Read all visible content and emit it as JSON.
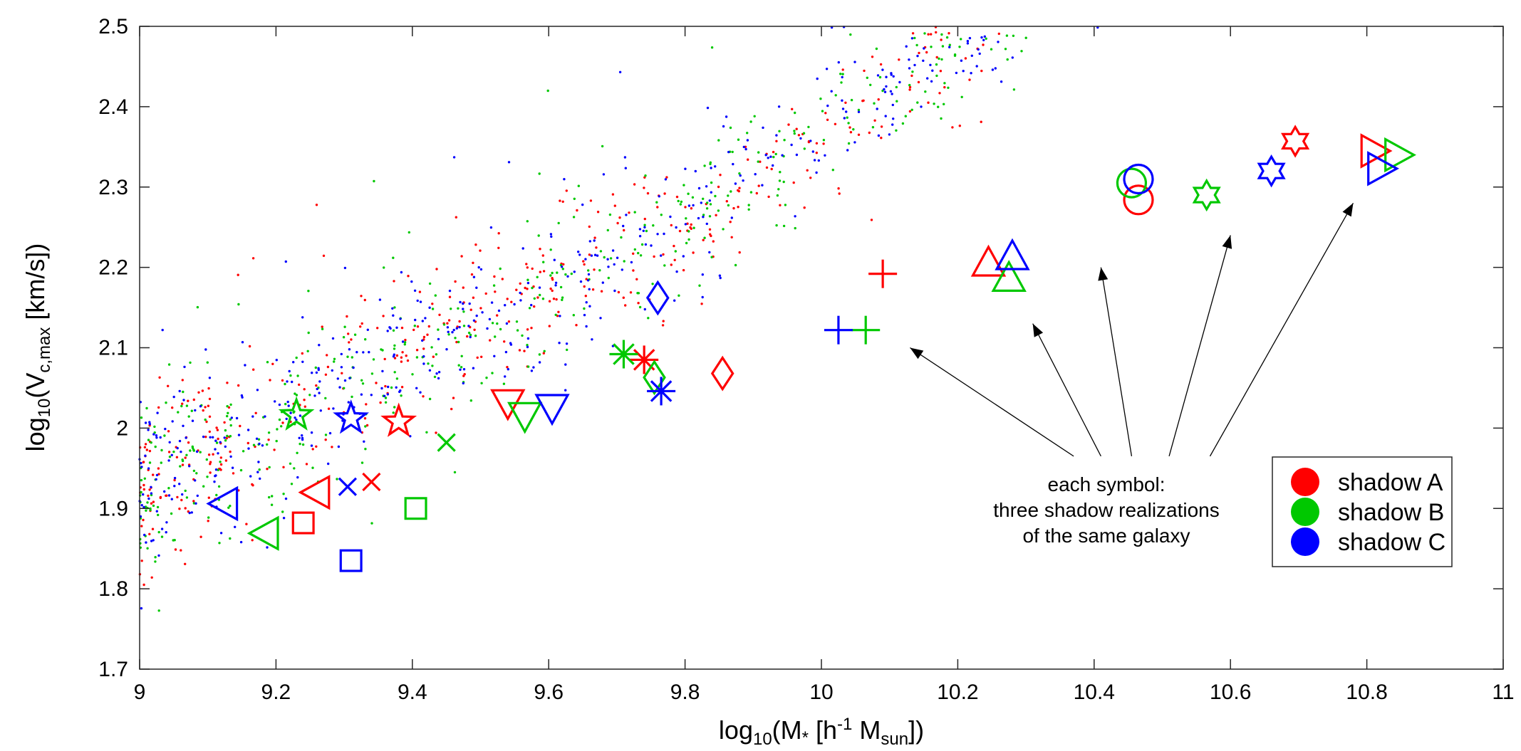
{
  "chart_data": {
    "type": "scatter",
    "title": "",
    "xlabel": {
      "base": "log",
      "base_sub": "10",
      "open": "(M",
      "star": "*",
      "mid": " [h",
      "sup": "-1",
      "m": " M",
      "sub": "sun",
      "close": "])"
    },
    "ylabel": {
      "base": "log",
      "base_sub": "10",
      "open": "(V",
      "sub": "c,max",
      "close": " [km/s])"
    },
    "xlim": [
      9,
      11
    ],
    "ylim": [
      1.7,
      2.5
    ],
    "xticks": [
      9,
      9.2,
      9.4,
      9.6,
      9.8,
      10,
      10.2,
      10.4,
      10.6,
      10.8,
      11
    ],
    "xtick_labels": [
      "9",
      "9.2",
      "9.4",
      "9.6",
      "9.8",
      "10",
      "10.2",
      "10.4",
      "10.6",
      "10.8",
      "11"
    ],
    "yticks": [
      1.7,
      1.8,
      1.9,
      2.0,
      2.1,
      2.2,
      2.3,
      2.4,
      2.5
    ],
    "ytick_labels": [
      "1.7",
      "1.8",
      "1.9",
      "2",
      "2.1",
      "2.2",
      "2.3",
      "2.4",
      "2.5"
    ],
    "grid": false,
    "legend": {
      "position": "lower-right",
      "entries": [
        {
          "label": "shadow A",
          "color": "#ff0000"
        },
        {
          "label": "shadow B",
          "color": "#00c800"
        },
        {
          "label": "shadow C",
          "color": "#0000ff"
        }
      ]
    },
    "colors": {
      "A": "#ff0000",
      "B": "#00c800",
      "C": "#0000ff"
    },
    "annotation": {
      "lines": [
        "each symbol:",
        "three shadow realizations",
        "of the same galaxy"
      ],
      "anchor": [
        10.37,
        1.965
      ],
      "arrow_targets": [
        [
          10.13,
          2.1
        ],
        [
          10.31,
          2.13
        ],
        [
          10.41,
          2.2
        ],
        [
          10.6,
          2.24
        ],
        [
          10.78,
          2.28
        ]
      ]
    },
    "background_scatter": {
      "description": "faint dots, one per galaxy per shadow realization",
      "count_per_shadow": 620,
      "relation": {
        "x_range": [
          9,
          11
        ],
        "y_at_9": 1.92,
        "slope_low": 0.42,
        "break_x": 9.8,
        "slope_high": 0.56,
        "scatter": 0.045
      }
    },
    "series": [
      {
        "name": "shadow A",
        "color": "#ff0000",
        "points": [
          {
            "x": 9.74,
            "y": 2.085,
            "marker": "asterisk"
          },
          {
            "x": 9.855,
            "y": 2.068,
            "marker": "diamond"
          },
          {
            "x": 10.09,
            "y": 2.192,
            "marker": "plus"
          },
          {
            "x": 10.245,
            "y": 2.205,
            "marker": "triangle-up"
          },
          {
            "x": 10.465,
            "y": 2.284,
            "marker": "circle"
          },
          {
            "x": 10.695,
            "y": 2.357,
            "marker": "hexagram"
          },
          {
            "x": 10.81,
            "y": 2.345,
            "marker": "triangle-right"
          },
          {
            "x": 9.38,
            "y": 2.008,
            "marker": "pentagram"
          },
          {
            "x": 9.54,
            "y": 2.032,
            "marker": "triangle-down"
          },
          {
            "x": 9.26,
            "y": 1.92,
            "marker": "triangle-left"
          },
          {
            "x": 9.34,
            "y": 1.933,
            "marker": "x"
          },
          {
            "x": 9.24,
            "y": 1.882,
            "marker": "square"
          }
        ]
      },
      {
        "name": "shadow B",
        "color": "#00c800",
        "points": [
          {
            "x": 9.71,
            "y": 2.092,
            "marker": "asterisk"
          },
          {
            "x": 9.755,
            "y": 2.063,
            "marker": "diamond"
          },
          {
            "x": 10.065,
            "y": 2.122,
            "marker": "plus"
          },
          {
            "x": 10.275,
            "y": 2.186,
            "marker": "triangle-up"
          },
          {
            "x": 10.455,
            "y": 2.305,
            "marker": "circle"
          },
          {
            "x": 10.565,
            "y": 2.29,
            "marker": "hexagram"
          },
          {
            "x": 10.845,
            "y": 2.34,
            "marker": "triangle-right"
          },
          {
            "x": 9.23,
            "y": 2.016,
            "marker": "pentagram"
          },
          {
            "x": 9.565,
            "y": 2.016,
            "marker": "triangle-down"
          },
          {
            "x": 9.185,
            "y": 1.869,
            "marker": "triangle-left"
          },
          {
            "x": 9.45,
            "y": 1.982,
            "marker": "x"
          },
          {
            "x": 9.405,
            "y": 1.9,
            "marker": "square"
          }
        ]
      },
      {
        "name": "shadow C",
        "color": "#0000ff",
        "points": [
          {
            "x": 9.765,
            "y": 2.046,
            "marker": "asterisk"
          },
          {
            "x": 9.76,
            "y": 2.162,
            "marker": "diamond"
          },
          {
            "x": 10.025,
            "y": 2.122,
            "marker": "plus"
          },
          {
            "x": 10.28,
            "y": 2.213,
            "marker": "triangle-up"
          },
          {
            "x": 10.465,
            "y": 2.31,
            "marker": "circle"
          },
          {
            "x": 10.66,
            "y": 2.32,
            "marker": "hexagram"
          },
          {
            "x": 10.82,
            "y": 2.323,
            "marker": "triangle-right"
          },
          {
            "x": 9.31,
            "y": 2.012,
            "marker": "pentagram"
          },
          {
            "x": 9.605,
            "y": 2.026,
            "marker": "triangle-down"
          },
          {
            "x": 9.125,
            "y": 1.906,
            "marker": "triangle-left"
          },
          {
            "x": 9.305,
            "y": 1.927,
            "marker": "x"
          },
          {
            "x": 9.31,
            "y": 1.835,
            "marker": "square"
          }
        ]
      }
    ]
  }
}
